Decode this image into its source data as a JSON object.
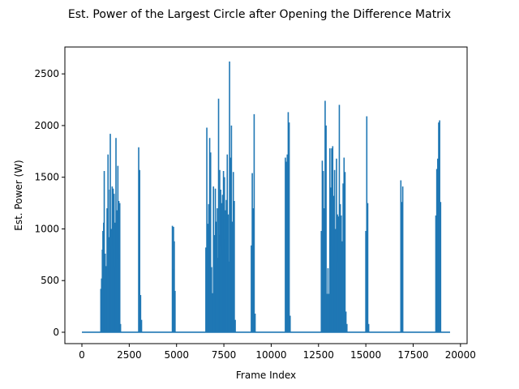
{
  "chart_data": {
    "type": "line",
    "title": "Est. Power of the Largest Circle after Opening the Difference Matrix",
    "xlabel": "Frame Index",
    "ylabel": "Est. Power (W)",
    "xlim": [
      -900,
      20350
    ],
    "ylim": [
      -110,
      2760
    ],
    "xticks": [
      0,
      2500,
      5000,
      7500,
      10000,
      12500,
      15000,
      17500,
      20000
    ],
    "yticks": [
      0,
      500,
      1000,
      1500,
      2000,
      2500
    ],
    "grid": false,
    "legend": "none",
    "series": [
      {
        "color": "#1f77b4",
        "baseline": 0,
        "x_range": [
          0,
          19450
        ],
        "spikes": [
          [
            1000,
            420
          ],
          [
            1040,
            520
          ],
          [
            1080,
            800
          ],
          [
            1110,
            980
          ],
          [
            1150,
            1060
          ],
          [
            1180,
            1560
          ],
          [
            1230,
            760
          ],
          [
            1280,
            640
          ],
          [
            1330,
            1200
          ],
          [
            1380,
            1720
          ],
          [
            1430,
            920
          ],
          [
            1470,
            1380
          ],
          [
            1500,
            1920
          ],
          [
            1550,
            1000
          ],
          [
            1600,
            1410
          ],
          [
            1650,
            1390
          ],
          [
            1700,
            1340
          ],
          [
            1750,
            1060
          ],
          [
            1800,
            1880
          ],
          [
            1850,
            1180
          ],
          [
            1900,
            1610
          ],
          [
            1950,
            1270
          ],
          [
            2000,
            1250
          ],
          [
            2040,
            80
          ],
          [
            3000,
            1790
          ],
          [
            3050,
            1570
          ],
          [
            3100,
            360
          ],
          [
            3150,
            120
          ],
          [
            4780,
            1030
          ],
          [
            4840,
            1020
          ],
          [
            4880,
            880
          ],
          [
            4920,
            400
          ],
          [
            6550,
            820
          ],
          [
            6600,
            1980
          ],
          [
            6650,
            1050
          ],
          [
            6700,
            1240
          ],
          [
            6750,
            1880
          ],
          [
            6800,
            1740
          ],
          [
            6850,
            630
          ],
          [
            6950,
            1410
          ],
          [
            7000,
            940
          ],
          [
            7050,
            1390
          ],
          [
            7100,
            1070
          ],
          [
            7150,
            1200
          ],
          [
            7220,
            2260
          ],
          [
            7280,
            1570
          ],
          [
            7330,
            1380
          ],
          [
            7380,
            1250
          ],
          [
            7430,
            1330
          ],
          [
            7480,
            1560
          ],
          [
            7530,
            1500
          ],
          [
            7580,
            1180
          ],
          [
            7630,
            1280
          ],
          [
            7680,
            1720
          ],
          [
            7730,
            1140
          ],
          [
            7800,
            2620
          ],
          [
            7850,
            1690
          ],
          [
            7900,
            2000
          ],
          [
            7950,
            1070
          ],
          [
            8000,
            1550
          ],
          [
            8050,
            1270
          ],
          [
            8100,
            120
          ],
          [
            8950,
            840
          ],
          [
            9000,
            1540
          ],
          [
            9050,
            1200
          ],
          [
            9100,
            2110
          ],
          [
            9150,
            180
          ],
          [
            10750,
            1690
          ],
          [
            10800,
            1650
          ],
          [
            10850,
            1720
          ],
          [
            10900,
            2130
          ],
          [
            10950,
            2030
          ],
          [
            11000,
            160
          ],
          [
            12650,
            980
          ],
          [
            12700,
            1660
          ],
          [
            12750,
            1560
          ],
          [
            12800,
            1200
          ],
          [
            12850,
            2240
          ],
          [
            12900,
            2000
          ],
          [
            13000,
            620
          ],
          [
            13100,
            1780
          ],
          [
            13150,
            1400
          ],
          [
            13200,
            1780
          ],
          [
            13250,
            1800
          ],
          [
            13300,
            1320
          ],
          [
            13350,
            1570
          ],
          [
            13400,
            1000
          ],
          [
            13450,
            1680
          ],
          [
            13500,
            1140
          ],
          [
            13550,
            1120
          ],
          [
            13600,
            2200
          ],
          [
            13650,
            1240
          ],
          [
            13700,
            1130
          ],
          [
            13750,
            880
          ],
          [
            13800,
            1440
          ],
          [
            13850,
            1690
          ],
          [
            13900,
            1550
          ],
          [
            13950,
            200
          ],
          [
            14000,
            80
          ],
          [
            15000,
            980
          ],
          [
            15050,
            2090
          ],
          [
            15100,
            1250
          ],
          [
            15150,
            80
          ],
          [
            16850,
            1470
          ],
          [
            16900,
            1260
          ],
          [
            16950,
            1410
          ],
          [
            18700,
            1130
          ],
          [
            18750,
            1580
          ],
          [
            18800,
            1680
          ],
          [
            18850,
            2030
          ],
          [
            18900,
            2050
          ],
          [
            18950,
            1260
          ]
        ]
      }
    ]
  }
}
